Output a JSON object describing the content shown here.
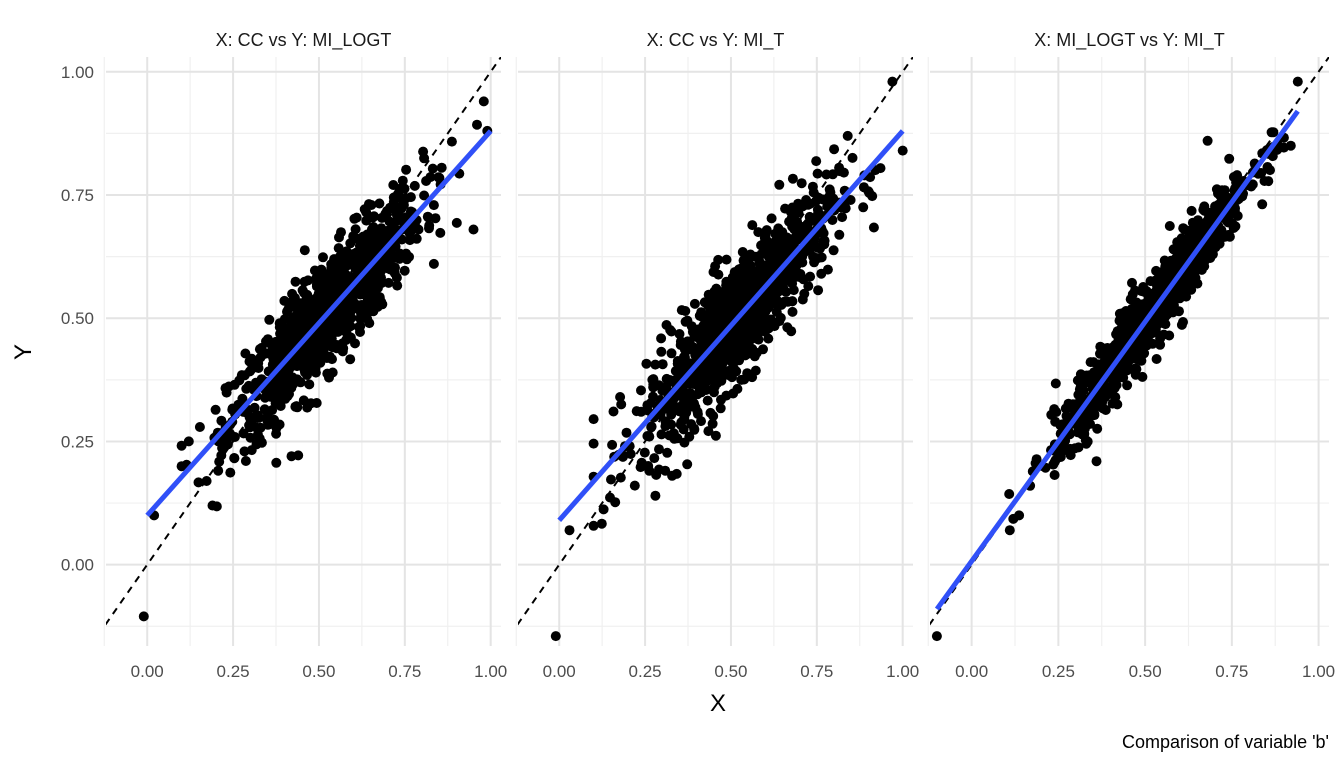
{
  "chart_data": {
    "type": "scatter",
    "facet_titles": [
      "X: CC vs Y: MI_LOGT",
      "X: CC vs Y: MI_T",
      "X: MI_LOGT vs Y: MI_T"
    ],
    "xlabel": "X",
    "ylabel": "Y",
    "caption": "Comparison of variable 'b'",
    "xlim": [
      -0.12,
      1.03
    ],
    "ylim": [
      -0.165,
      1.03
    ],
    "x_ticks": [
      "0.00",
      "0.25",
      "0.50",
      "0.75",
      "1.00"
    ],
    "y_ticks": [
      "0.00",
      "0.25",
      "0.50",
      "0.75",
      "1.00"
    ],
    "grid": true,
    "reference_line": {
      "type": "identity",
      "style": "dashed",
      "color": "#000000"
    },
    "fit_color": "#3050F8",
    "point_color": "#000000",
    "panels": [
      {
        "title": "X: CC vs Y: MI_LOGT",
        "n_points": 1000,
        "x_mean": 0.52,
        "x_sd": 0.14,
        "x_range": [
          0.0,
          1.0
        ],
        "fit_line": {
          "x": [
            0.0,
            1.0
          ],
          "y": [
            0.1,
            0.88
          ]
        },
        "residual_sd": 0.055,
        "notable_points": [
          [
            -0.01,
            -0.105
          ],
          [
            0.02,
            0.1
          ],
          [
            0.98,
            0.94
          ],
          [
            0.99,
            0.88
          ],
          [
            0.42,
            0.22
          ],
          [
            0.19,
            0.12
          ],
          [
            0.95,
            0.68
          ]
        ]
      },
      {
        "title": "X: CC vs Y: MI_T",
        "n_points": 1000,
        "x_mean": 0.52,
        "x_sd": 0.14,
        "x_range": [
          0.0,
          1.0
        ],
        "fit_line": {
          "x": [
            0.0,
            1.0
          ],
          "y": [
            0.09,
            0.88
          ]
        },
        "residual_sd": 0.06,
        "notable_points": [
          [
            -0.01,
            -0.145
          ],
          [
            0.03,
            0.07
          ],
          [
            0.97,
            0.98
          ],
          [
            1.0,
            0.84
          ],
          [
            0.28,
            0.14
          ],
          [
            0.84,
            0.87
          ]
        ]
      },
      {
        "title": "X: MI_LOGT vs Y: MI_T",
        "n_points": 1000,
        "x_mean": 0.52,
        "x_sd": 0.14,
        "x_range": [
          -0.1,
          0.94
        ],
        "fit_line": {
          "x": [
            -0.1,
            0.94
          ],
          "y": [
            -0.09,
            0.92
          ]
        },
        "residual_sd": 0.035,
        "notable_points": [
          [
            -0.1,
            -0.145
          ],
          [
            0.11,
            0.07
          ],
          [
            0.94,
            0.98
          ],
          [
            0.92,
            0.85
          ],
          [
            0.36,
            0.21
          ],
          [
            0.68,
            0.86
          ]
        ]
      }
    ]
  }
}
